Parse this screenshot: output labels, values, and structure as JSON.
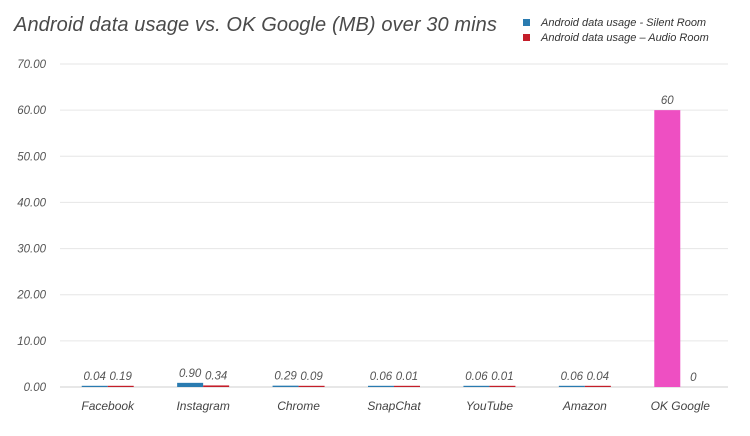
{
  "chart_data": {
    "type": "bar",
    "title": "Android data usage vs. OK Google (MB) over 30 mins",
    "categories": [
      "Facebook",
      "Instagram",
      "Chrome",
      "SnapChat",
      "YouTube",
      "Amazon",
      "OK Google"
    ],
    "series": [
      {
        "name": "Android data usage - Silent Room",
        "color": "#2a7bb0",
        "values": [
          0.04,
          0.9,
          0.29,
          0.06,
          0.06,
          0.06,
          60
        ],
        "labels": [
          "0.04",
          "0.90",
          "0.29",
          "0.06",
          "0.06",
          "0.06",
          "60"
        ]
      },
      {
        "name": "Android data usage – Audio Room",
        "color": "#c41e2a",
        "values": [
          0.19,
          0.34,
          0.09,
          0.01,
          0.01,
          0.04,
          0
        ],
        "labels": [
          "0.19",
          "0.34",
          "0.09",
          "0.01",
          "0.01",
          "0.04",
          "0"
        ]
      }
    ],
    "highlight_color": "#ee4fc2",
    "ylim": [
      0,
      70
    ],
    "yticks": [
      "0.00",
      "10.00",
      "20.00",
      "30.00",
      "40.00",
      "50.00",
      "60.00",
      "70.00"
    ],
    "grid": true,
    "legend_position": "top-right",
    "xlabel": "",
    "ylabel": ""
  }
}
